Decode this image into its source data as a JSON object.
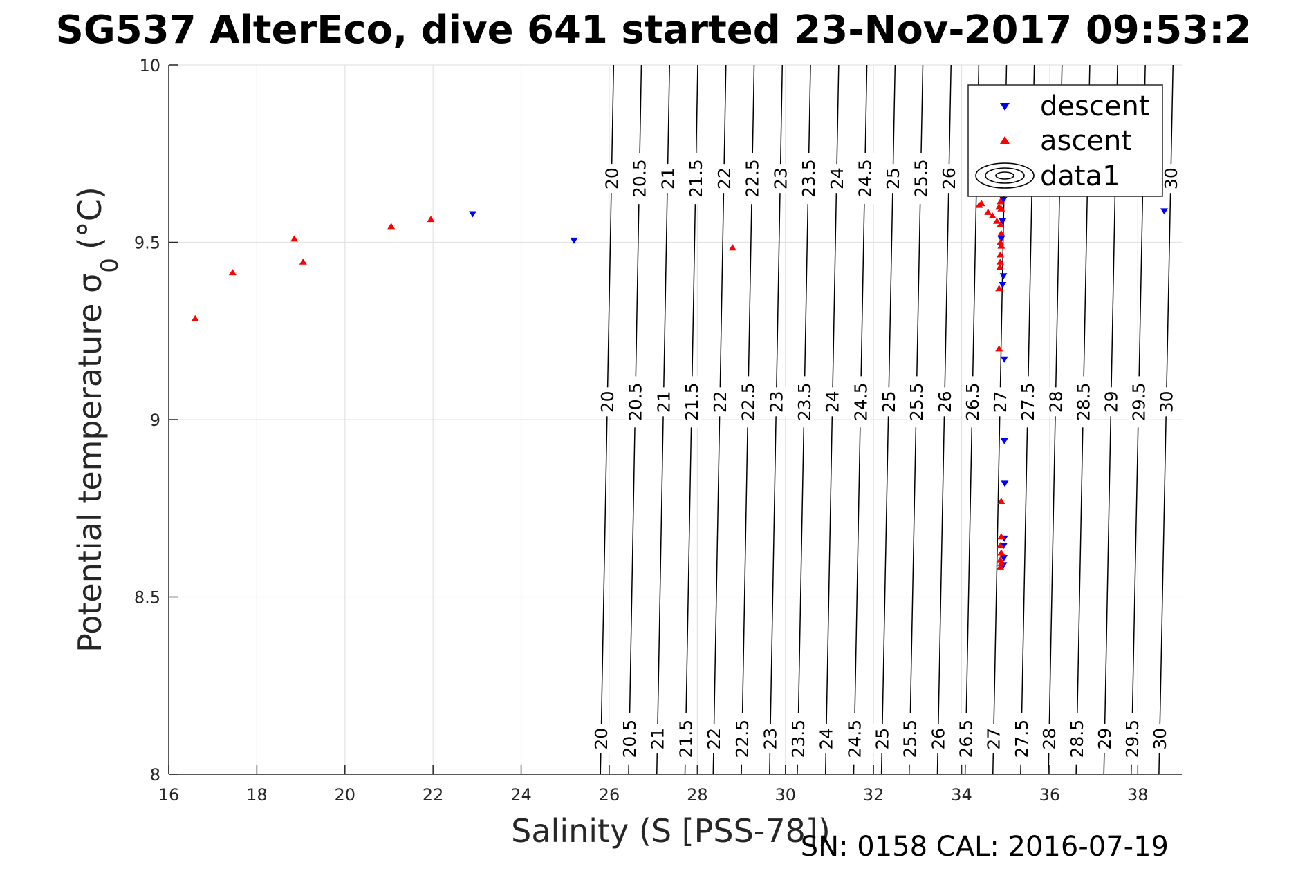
{
  "chart_data": {
    "type": "scatter",
    "title": "SG537 AlterEco, dive 641 started 23-Nov-2017 09:53:2",
    "xlabel": "Salinity (S [PSS-78])",
    "ylabel_main": "Potential temperature σ",
    "ylabel_sub": "0",
    "ylabel_unit": "(°C)",
    "xlim": [
      16,
      39
    ],
    "ylim": [
      8,
      10
    ],
    "xticks": [
      16,
      18,
      20,
      22,
      24,
      26,
      28,
      30,
      32,
      34,
      36,
      38
    ],
    "yticks": [
      8,
      8.5,
      9,
      9.5,
      10
    ],
    "xtick_labels": [
      "16",
      "18",
      "20",
      "22",
      "24",
      "26",
      "28",
      "30",
      "32",
      "34",
      "36",
      "38"
    ],
    "ytick_labels": [
      "8",
      "8.5",
      "9",
      "9.5",
      "10"
    ],
    "grid": true,
    "legend": {
      "placement": "top-right",
      "entries": [
        "descent",
        "ascent",
        "data1"
      ]
    },
    "series": [
      {
        "name": "descent",
        "marker": "triangle-down",
        "color": "#0000ff",
        "points": [
          [
            22.9,
            9.58
          ],
          [
            25.2,
            9.505
          ],
          [
            38.6,
            9.588
          ],
          [
            34.95,
            9.62
          ],
          [
            34.93,
            9.56
          ],
          [
            34.9,
            9.51
          ],
          [
            34.95,
            9.405
          ],
          [
            34.93,
            9.38
          ],
          [
            34.97,
            9.17
          ],
          [
            34.97,
            8.94
          ],
          [
            34.98,
            8.82
          ],
          [
            34.97,
            8.665
          ],
          [
            34.96,
            8.645
          ],
          [
            34.96,
            8.61
          ],
          [
            34.95,
            8.59
          ]
        ]
      },
      {
        "name": "ascent",
        "marker": "triangle-up",
        "color": "#ff0000",
        "points": [
          [
            16.6,
            9.285
          ],
          [
            17.45,
            9.415
          ],
          [
            18.85,
            9.51
          ],
          [
            19.05,
            9.445
          ],
          [
            21.05,
            9.545
          ],
          [
            21.95,
            9.565
          ],
          [
            28.8,
            9.485
          ],
          [
            34.4,
            9.605
          ],
          [
            34.45,
            9.61
          ],
          [
            34.6,
            9.585
          ],
          [
            34.7,
            9.575
          ],
          [
            34.8,
            9.56
          ],
          [
            34.85,
            9.6
          ],
          [
            34.88,
            9.615
          ],
          [
            34.9,
            9.595
          ],
          [
            34.88,
            9.55
          ],
          [
            34.9,
            9.525
          ],
          [
            34.88,
            9.5
          ],
          [
            34.9,
            9.49
          ],
          [
            34.88,
            9.465
          ],
          [
            34.88,
            9.445
          ],
          [
            34.87,
            9.43
          ],
          [
            34.85,
            9.37
          ],
          [
            34.85,
            9.2
          ],
          [
            34.9,
            8.77
          ],
          [
            34.9,
            8.67
          ],
          [
            34.88,
            8.645
          ],
          [
            34.9,
            8.625
          ],
          [
            34.88,
            8.605
          ],
          [
            34.9,
            8.595
          ],
          [
            34.88,
            8.585
          ]
        ]
      }
    ],
    "contours": {
      "name": "data1",
      "levels": [
        20,
        20.5,
        21,
        21.5,
        22,
        22.5,
        23,
        23.5,
        24,
        24.5,
        25,
        25.5,
        26,
        26.5,
        27,
        27.5,
        28,
        28.5,
        29,
        29.5,
        30
      ],
      "level_labels": [
        "20",
        "20.5",
        "21",
        "21.5",
        "22",
        "22.5",
        "23",
        "23.5",
        "24",
        "24.5",
        "25",
        "25.5",
        "26",
        "26.5",
        "27",
        "27.5",
        "28",
        "28.5",
        "29",
        "29.5",
        "30"
      ],
      "salinity_at_bottom": [
        25.8,
        26.44,
        27.08,
        27.72,
        28.36,
        29.0,
        29.64,
        30.27,
        30.91,
        31.55,
        32.18,
        32.81,
        33.45,
        34.08,
        34.71,
        35.34,
        35.97,
        36.6,
        37.23,
        37.85,
        38.48
      ],
      "salinity_at_top": [
        26.1,
        26.73,
        27.37,
        28.01,
        28.65,
        29.29,
        29.93,
        30.57,
        31.21,
        31.85,
        32.49,
        33.12,
        33.76,
        34.39,
        35.02,
        35.65,
        36.28,
        36.91,
        37.54,
        38.17,
        38.8
      ],
      "label_rows_y": [
        8.1,
        9.05,
        9.68
      ],
      "top_row_levels": [
        20,
        20.5,
        21,
        21.5,
        22,
        22.5,
        23,
        23.5,
        24,
        24.5,
        25,
        25.5,
        26,
        30
      ]
    },
    "footer": "SN: 0158  CAL: 2016-07-19"
  }
}
